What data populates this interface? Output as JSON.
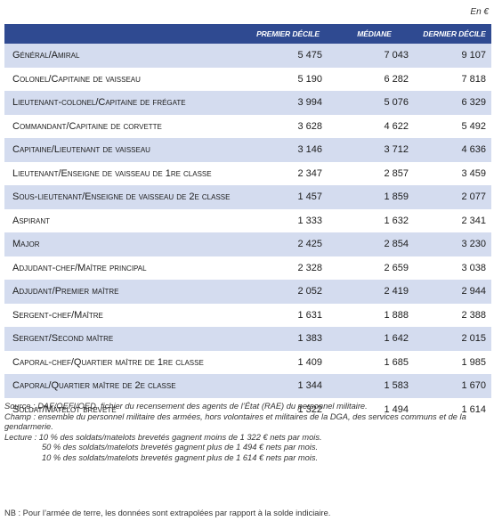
{
  "unit": "En €",
  "headers": [
    "",
    "PREMIER DÉCILE",
    "MÉDIANE",
    "DERNIER DÉCILE"
  ],
  "rows": [
    {
      "label": "Général/Amiral",
      "p10": "5 475",
      "median": "7 043",
      "p90": "9 107"
    },
    {
      "label": "Colonel/Capitaine de vaisseau",
      "p10": "5 190",
      "median": "6 282",
      "p90": "7 818"
    },
    {
      "label": "Lieutenant-colonel/Capitaine de frégate",
      "p10": "3 994",
      "median": "5 076",
      "p90": "6 329"
    },
    {
      "label": "Commandant/Capitaine de corvette",
      "p10": "3 628",
      "median": "4 622",
      "p90": "5 492"
    },
    {
      "label": "Capitaine/Lieutenant de vaisseau",
      "p10": "3 146",
      "median": "3 712",
      "p90": "4 636"
    },
    {
      "label": "Lieutenant/Enseigne de vaisseau de 1re classe",
      "p10": "2 347",
      "median": "2 857",
      "p90": "3 459"
    },
    {
      "label": "Sous-lieutenant/Enseigne de vaisseau de 2e classe",
      "p10": "1 457",
      "median": "1 859",
      "p90": "2 077"
    },
    {
      "label": "Aspirant",
      "p10": "1 333",
      "median": "1 632",
      "p90": "2 341"
    },
    {
      "label": "Major",
      "p10": "2 425",
      "median": "2 854",
      "p90": "3 230"
    },
    {
      "label": "Adjudant-chef/Maître principal",
      "p10": "2 328",
      "median": "2 659",
      "p90": "3 038"
    },
    {
      "label": "Adjudant/Premier maître",
      "p10": "2 052",
      "median": "2 419",
      "p90": "2 944"
    },
    {
      "label": "Sergent-chef/Maître",
      "p10": "1 631",
      "median": "1 888",
      "p90": "2 388"
    },
    {
      "label": "Sergent/Second maître",
      "p10": "1 383",
      "median": "1 642",
      "p90": "2 015"
    },
    {
      "label": "Caporal-chef/Quartier maître de 1re classe",
      "p10": "1 409",
      "median": "1 685",
      "p90": "1 985"
    },
    {
      "label": "Caporal/Quartier maître de 2e classe",
      "p10": "1 344",
      "median": "1 583",
      "p90": "1 670"
    },
    {
      "label": "Soldat/Matelot breveté",
      "p10": "1 322",
      "median": "1 494",
      "p90": "1 614"
    }
  ],
  "notes": {
    "source": "Source : DAF/QEFI/OED, fichier du recensement des agents de l’État (RAE) du personnel militaire.",
    "champ": "Champ : ensemble du personnel militaire des armées, hors volontaires et militaires de la DGA, des services communs et de la gendarmerie.",
    "lecture_1": "Lecture : 10 % des soldats/matelots brevetés gagnent moins de 1 322 € nets par mois.",
    "lecture_2": "50 % des soldats/matelots brevetés gagnent plus de 1 494 € nets par mois.",
    "lecture_3": "10 % des soldats/matelots brevetés gagnent plus de 1 614 € nets par mois."
  },
  "nb": "NB : Pour l’armée de terre, les données sont extrapolées par rapport à la solde indiciaire."
}
